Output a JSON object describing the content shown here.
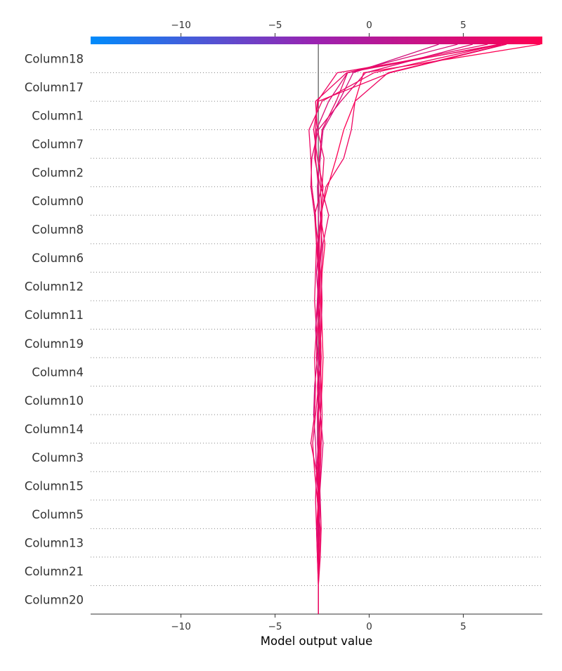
{
  "chart_data": {
    "type": "line",
    "subtype": "shap-decision-plot",
    "title": "",
    "xlabel": "Model output value",
    "ylabel": "",
    "xlim": [
      -14.8,
      9.2
    ],
    "xticks": [
      -10,
      -5,
      0,
      5
    ],
    "xtick_labels": [
      "−10",
      "−5",
      "0",
      "5"
    ],
    "base_value": -2.7,
    "colorbar": {
      "range": [
        -14.8,
        9.2
      ],
      "low_color": "#008bfb",
      "mid_color": "#9b22b0",
      "high_color": "#ff0052"
    },
    "grid": "horizontal dotted",
    "features": [
      "Column20",
      "Column21",
      "Column13",
      "Column5",
      "Column15",
      "Column3",
      "Column14",
      "Column10",
      "Column4",
      "Column19",
      "Column11",
      "Column12",
      "Column6",
      "Column8",
      "Column0",
      "Column2",
      "Column7",
      "Column1",
      "Column17",
      "Column18"
    ],
    "series": [
      {
        "values": [
          -2.7,
          -2.7,
          -2.75,
          -2.7,
          -2.8,
          -2.85,
          -2.95,
          -2.9,
          -2.75,
          -2.85,
          -2.7,
          -2.8,
          -2.65,
          -2.7,
          -2.75,
          -2.6,
          -2.45,
          -1.6,
          -0.85,
          3.7
        ]
      },
      {
        "values": [
          -2.7,
          -2.7,
          -2.65,
          -2.75,
          -2.7,
          -2.65,
          -2.7,
          -2.75,
          -2.65,
          -2.7,
          -2.75,
          -2.7,
          -2.8,
          -2.9,
          -2.5,
          -2.4,
          -2.75,
          -2.85,
          -1.2,
          6.9
        ]
      },
      {
        "values": [
          -2.7,
          -2.75,
          -2.8,
          -2.7,
          -2.65,
          -2.6,
          -2.6,
          -2.5,
          -2.45,
          -2.5,
          -2.55,
          -2.5,
          -2.35,
          -2.6,
          -2.2,
          -1.75,
          -1.35,
          -0.75,
          -0.3,
          9.1
        ]
      },
      {
        "values": [
          -2.7,
          -2.65,
          -2.6,
          -2.75,
          -2.9,
          -3.0,
          -2.85,
          -2.7,
          -2.8,
          -2.75,
          -2.65,
          -2.7,
          -2.75,
          -2.55,
          -2.3,
          -1.35,
          -0.95,
          -0.75,
          1.0,
          7.2
        ]
      },
      {
        "values": [
          -2.7,
          -2.7,
          -2.7,
          -2.65,
          -2.55,
          -2.45,
          -2.6,
          -2.7,
          -2.55,
          -2.6,
          -2.7,
          -2.65,
          -2.7,
          -2.9,
          -3.1,
          -3.05,
          -2.7,
          -1.5,
          -0.2,
          5.5
        ]
      },
      {
        "values": [
          -2.7,
          -2.6,
          -2.55,
          -2.6,
          -2.8,
          -3.1,
          -2.9,
          -2.85,
          -2.9,
          -2.8,
          -2.9,
          -2.85,
          -2.8,
          -2.85,
          -3.05,
          -3.1,
          -3.2,
          -2.5,
          0.25,
          7.0
        ]
      },
      {
        "values": [
          -2.7,
          -2.7,
          -2.65,
          -2.6,
          -2.65,
          -2.75,
          -2.75,
          -2.65,
          -2.7,
          -2.85,
          -2.75,
          -2.65,
          -2.5,
          -2.6,
          -2.7,
          -2.85,
          -2.8,
          -2.15,
          -1.15,
          4.7
        ]
      },
      {
        "values": [
          -2.7,
          -2.75,
          -2.8,
          -2.85,
          -2.8,
          -2.7,
          -2.6,
          -2.55,
          -2.65,
          -2.55,
          -2.5,
          -2.55,
          -2.45,
          -2.15,
          -2.55,
          -2.65,
          -2.5,
          -1.75,
          -1.15,
          6.3
        ]
      },
      {
        "values": [
          -2.7,
          -2.7,
          -2.7,
          -2.7,
          -2.75,
          -2.65,
          -2.7,
          -2.6,
          -2.55,
          -2.6,
          -2.6,
          -2.6,
          -2.65,
          -2.55,
          -2.45,
          -2.75,
          -2.95,
          -2.7,
          1.1,
          7.3
        ]
      },
      {
        "values": [
          -2.7,
          -2.65,
          -2.7,
          -2.65,
          -2.6,
          -2.55,
          -2.5,
          -2.55,
          -2.6,
          -2.65,
          -2.6,
          -2.65,
          -2.55,
          -2.5,
          -2.6,
          -2.9,
          -2.85,
          -2.75,
          -1.7,
          7.2
        ]
      }
    ]
  }
}
